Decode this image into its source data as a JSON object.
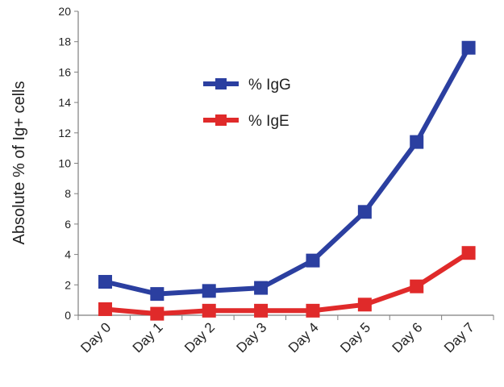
{
  "chart_data": {
    "type": "line",
    "ylabel": "Absolute % of Ig+ cells",
    "xlabel": "",
    "categories": [
      "Day 0",
      "Day 1",
      "Day 2",
      "Day 3",
      "Day 4",
      "Day 5",
      "Day 6",
      "Day 7"
    ],
    "ylim": [
      0,
      20
    ],
    "yticks": [
      0,
      2,
      4,
      6,
      8,
      10,
      12,
      14,
      16,
      18,
      20
    ],
    "grid": false,
    "legend_position": "top-center",
    "series": [
      {
        "name": "% IgG",
        "color": "#2b3fa0",
        "marker": "square",
        "values": [
          2.2,
          1.4,
          1.6,
          1.8,
          3.6,
          6.8,
          11.4,
          17.6
        ]
      },
      {
        "name": "% IgE",
        "color": "#e02a2a",
        "marker": "square",
        "values": [
          0.4,
          0.1,
          0.3,
          0.3,
          0.3,
          0.7,
          1.9,
          4.1
        ]
      }
    ]
  }
}
